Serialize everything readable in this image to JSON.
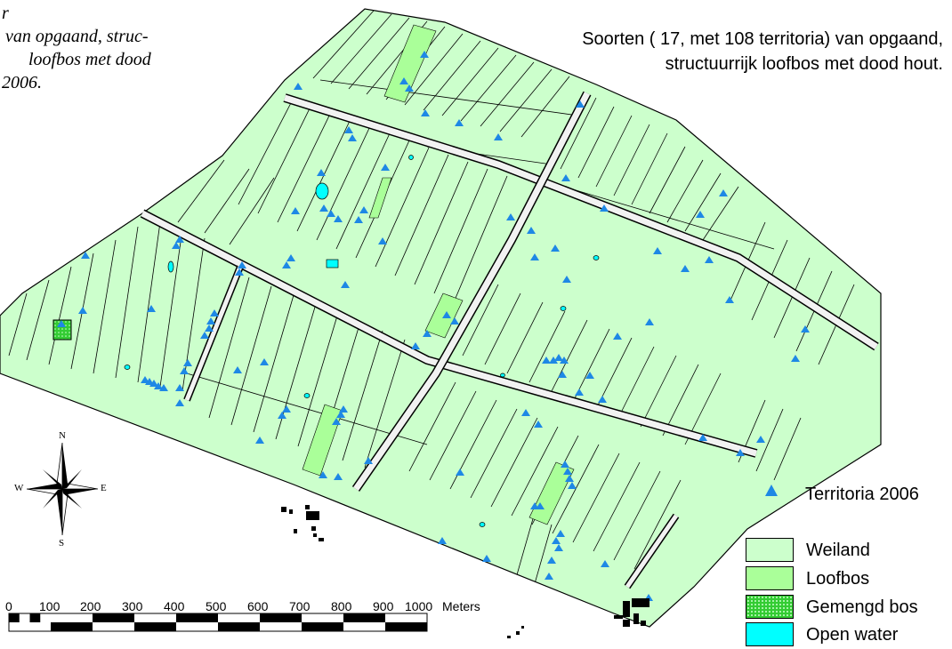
{
  "map": {
    "title_left": [
      "r",
      "van opgaand, struc-",
      "loofbos met dood",
      "2006."
    ],
    "title_right": [
      "Soorten  ( 17, met 108 territoria)    van opgaand,",
      "structuurrijk loofbos met dood hout."
    ],
    "legend": {
      "territoria": "Territoria 2006",
      "items": [
        {
          "label": "Weiland",
          "color": "#ccffcc"
        },
        {
          "label": "Loofbos",
          "color": "#aaff99"
        },
        {
          "label": "Gemengd bos",
          "color": "#33cc33"
        },
        {
          "label": "Open water",
          "color": "#00ffff"
        }
      ]
    },
    "scale": {
      "ticks": [
        "0",
        "100",
        "200",
        "300",
        "400",
        "500",
        "600",
        "700",
        "800",
        "900",
        "1000"
      ],
      "unit": "Meters"
    },
    "compass": {
      "n": "N",
      "s": "S",
      "e": "E",
      "w": "W"
    },
    "colors": {
      "weiland": "#ccffcc",
      "loofbos": "#aaff99",
      "gemengd_bos": "#33cc33",
      "open_water": "#00ffff",
      "road": "#f2f2f2",
      "triangle": "#1e88e5",
      "building": "#000000"
    }
  }
}
